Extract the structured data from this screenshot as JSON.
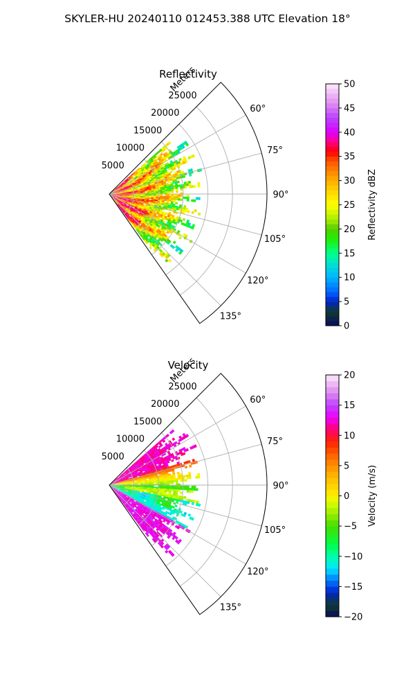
{
  "figure": {
    "suptitle": "SKYLER-HU  20240110  012453.388 UTC Elevation 18°"
  },
  "chart_data": [
    {
      "type": "polar-wedge",
      "title": "Reflectivity",
      "radial_label": "Meters",
      "radial_ticks": [
        5000,
        10000,
        15000,
        20000,
        25000
      ],
      "radial_tick_labels": [
        "5000",
        "10000",
        "15000",
        "20000",
        "25000"
      ],
      "rmax": 32000,
      "theta_min_deg": 45,
      "theta_max_deg": 145,
      "theta_ticks_deg": [
        60,
        75,
        90,
        105,
        120,
        135
      ],
      "theta_tick_labels": [
        "60°",
        "75°",
        "90°",
        "105°",
        "120°",
        "135°"
      ],
      "data_extent_m": 19000,
      "colorbar": {
        "label": "Reflectivity dBZ",
        "min": 0,
        "max": 50,
        "ticks": [
          0,
          5,
          10,
          15,
          20,
          25,
          30,
          35,
          40,
          45,
          50
        ],
        "tick_labels": [
          "0",
          "5",
          "10",
          "15",
          "20",
          "25",
          "30",
          "35",
          "40",
          "45",
          "50"
        ],
        "color_stops": [
          [
            0,
            "#0b0b5e"
          ],
          [
            3,
            "#0f3d2e"
          ],
          [
            5,
            "#0022cc"
          ],
          [
            7,
            "#0066ff"
          ],
          [
            10,
            "#00b4ff"
          ],
          [
            13,
            "#00e5cc"
          ],
          [
            15,
            "#00ff88"
          ],
          [
            18,
            "#22ee00"
          ],
          [
            20,
            "#55cc00"
          ],
          [
            22,
            "#aaee00"
          ],
          [
            25,
            "#ffff00"
          ],
          [
            28,
            "#ffd200"
          ],
          [
            31,
            "#ff9900"
          ],
          [
            34,
            "#ff5500"
          ],
          [
            36,
            "#ff0000"
          ],
          [
            38,
            "#ff0088"
          ],
          [
            40,
            "#dd00ff"
          ],
          [
            43,
            "#b944ff"
          ],
          [
            46,
            "#e08ef0"
          ],
          [
            50,
            "#fde9fc"
          ]
        ]
      }
    },
    {
      "type": "polar-wedge",
      "title": "Velocity",
      "radial_label": "Meters",
      "radial_ticks": [
        5000,
        10000,
        15000,
        20000,
        25000
      ],
      "radial_tick_labels": [
        "5000",
        "10000",
        "15000",
        "20000",
        "25000"
      ],
      "rmax": 32000,
      "theta_min_deg": 45,
      "theta_max_deg": 145,
      "theta_ticks_deg": [
        60,
        75,
        90,
        105,
        120,
        135
      ],
      "theta_tick_labels": [
        "60°",
        "75°",
        "90°",
        "105°",
        "120°",
        "135°"
      ],
      "data_extent_m": 19000,
      "colorbar": {
        "label": "Velocity (m/s)",
        "min": -20,
        "max": 20,
        "ticks": [
          -20,
          -15,
          -10,
          -5,
          0,
          5,
          10,
          15,
          20
        ],
        "tick_labels": [
          "−20",
          "−15",
          "−10",
          "−5",
          "0",
          "5",
          "10",
          "15",
          "20"
        ],
        "color_stops": [
          [
            -20,
            "#0b0b5e"
          ],
          [
            -18,
            "#0f3d2e"
          ],
          [
            -16,
            "#0022cc"
          ],
          [
            -14,
            "#0077ff"
          ],
          [
            -12,
            "#00e5ff"
          ],
          [
            -10,
            "#00ffaa"
          ],
          [
            -8,
            "#00ff44"
          ],
          [
            -5,
            "#44dd00"
          ],
          [
            -3,
            "#99ee00"
          ],
          [
            -1,
            "#ddff00"
          ],
          [
            0,
            "#ffee00"
          ],
          [
            3,
            "#ffbb00"
          ],
          [
            6,
            "#ff7700"
          ],
          [
            9,
            "#ff2200"
          ],
          [
            11,
            "#ff0077"
          ],
          [
            13,
            "#ee00ff"
          ],
          [
            15,
            "#bb44ff"
          ],
          [
            17,
            "#dd88ee"
          ],
          [
            20,
            "#fde9fc"
          ]
        ]
      }
    }
  ]
}
